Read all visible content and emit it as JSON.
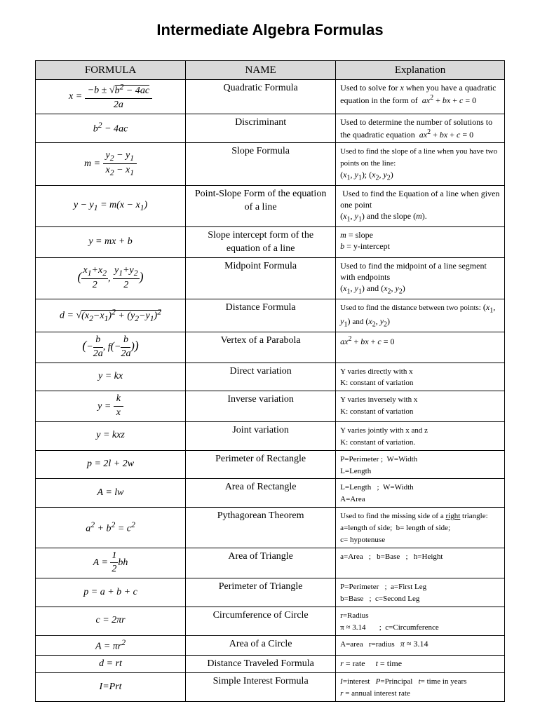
{
  "title": "Intermediate Algebra Formulas",
  "headers": {
    "formula": "FORMULA",
    "name": "NAME",
    "exp": "Explanation"
  },
  "rows": [
    {
      "formula": "<span class='nowrap'>x = <span style='display:inline-block;vertical-align:middle;text-align:center;'><span style='display:block;border-bottom:1px solid #000;padding:0 4px;'>−<i>b</i> ± √<span style='border-top:1px solid #000;'><i>b</i><sup>2</sup> − 4<i>ac</i></span></span><span style='display:block;'>2<i>a</i></span></span></span>",
      "name": "Quadratic Formula",
      "exp": "Used to solve for <i>x</i> when you have a quadratic equation in the form of &nbsp;<i>ax</i><sup>2</sup> + <i>bx</i> + <i>c</i> = 0"
    },
    {
      "formula": "<i>b</i><sup>2</sup> − 4<i>ac</i>",
      "name": "Discriminant",
      "exp": "Used to determine the number of solutions to the quadratic equation &nbsp;<i>ax</i><sup>2</sup> + <i>bx</i> + <i>c</i> = 0"
    },
    {
      "formula": "<span class='nowrap'><i>m</i> = <span style='display:inline-block;vertical-align:middle;text-align:center;'><span style='display:block;border-bottom:1px solid #000;padding:0 4px;'><i>y</i><sub>2</sub> − <i>y</i><sub>1</sub></span><span style='display:block;'><i>x</i><sub>2</sub> − <i>x</i><sub>1</sub></span></span></span>",
      "name": "Slope Formula",
      "exp": "<span class='small'>Used to find the slope of a line when you have two points on the line:</span><br>(<i>x</i><sub>1</sub>, <i>y</i><sub>1</sub>); (<i>x</i><sub>2</sub>, <i>y</i><sub>2</sub>)"
    },
    {
      "formula": "<i>y</i> − <i>y</i><sub>1</sub> = <i>m</i>(<i>x</i> − <i>x</i><sub>1</sub>)",
      "name": "Point-Slope Form of the equation of a line",
      "exp": "&nbsp;Used to find the Equation of a line when given one point<br>(<i>x</i><sub>1</sub>, <i>y</i><sub>1</sub>) and the slope (<i>m</i>)."
    },
    {
      "formula": "<i>y</i> = <i>mx</i> + <i>b</i>",
      "name": "Slope intercept form of the equation of a line",
      "exp": "<i>m</i> = slope<br><i>b</i> = y-intercept"
    },
    {
      "formula": "<span style='font-size:18px;'>(</span><span style='display:inline-block;vertical-align:middle;text-align:center;'><span style='display:block;border-bottom:1px solid #000;padding:0 2px;'><i>x</i><sub>1</sub>+<i>x</i><sub>2</sub></span><span>2</span></span>, <span style='display:inline-block;vertical-align:middle;text-align:center;'><span style='display:block;border-bottom:1px solid #000;padding:0 2px;'><i>y</i><sub>1</sub>+<i>y</i><sub>2</sub></span><span>2</span></span><span style='font-size:18px;'>)</span>",
      "name": "Midpoint Formula",
      "exp": "Used to find the midpoint of a line segment with endpoints<br>(<i>x</i><sub>1</sub>, <i>y</i><sub>1</sub>) and (<i>x</i><sub>2</sub>, <i>y</i><sub>2</sub>)"
    },
    {
      "formula": "<i>d</i> = √<span style='border-top:1px solid #000;'>(<i>x</i><sub>2</sub>−<i>x</i><sub>1</sub>)<sup>2</sup> + (<i>y</i><sub>2</sub>−<i>y</i><sub>1</sub>)<sup>2</sup></span>",
      "name": "Distance Formula",
      "exp": "<span class='small'>Used to find the distance between two points:</span> (<i>x</i><sub>1</sub>, <i>y</i><sub>1</sub>) <span class='small'>and</span> (<i>x</i><sub>2</sub>, <i>y</i><sub>2</sub>)"
    },
    {
      "formula": "<span style='font-size:18px;'>(</span>−<span style='display:inline-block;vertical-align:middle;text-align:center;'><span style='display:block;border-bottom:1px solid #000;padding:0 2px;'><i>b</i></span><span>2<i>a</i></span></span>, <i>f</i><span style='font-size:16px;'>(</span>−<span style='display:inline-block;vertical-align:middle;text-align:center;'><span style='display:block;border-bottom:1px solid #000;padding:0 2px;'><i>b</i></span><span>2<i>a</i></span></span><span style='font-size:16px;'>)</span><span style='font-size:18px;'>)</span>",
      "name": "Vertex of a Parabola",
      "exp": "<i>ax</i><sup>2</sup> + <i>bx</i> + <i>c</i> = 0"
    },
    {
      "formula": "<i>y</i> = <i>kx</i>",
      "name": "Direct variation",
      "exp": "<span class='small'>Y varies directly with x<br>K: constant of variation</span>"
    },
    {
      "formula": "<span class='nowrap'><i>y</i> = <span style='display:inline-block;vertical-align:middle;text-align:center;'><span style='display:block;border-bottom:1px solid #000;padding:0 4px;'><i>k</i></span><span><i>x</i></span></span></span>",
      "name": "Inverse variation",
      "exp": "<span class='small'>Y varies inversely with x<br>K: constant of variation</span>"
    },
    {
      "formula": "<i>y</i> = <i>kxz</i>",
      "name": "Joint variation",
      "exp": "<span class='small'>Y varies jointly with x and z<br>K: constant of variation.</span>"
    },
    {
      "formula": "<i>p</i> = 2<i>l</i> + 2<i>w</i>",
      "name": "Perimeter of Rectangle",
      "exp": "<span class='small'>P=Perimeter ;&nbsp;&nbsp;W=Width<br>L=Length</span>"
    },
    {
      "formula": "<i>A</i> = <i>lw</i>",
      "name": "Area of Rectangle",
      "exp": "<span class='small'>L=Length&nbsp;&nbsp;&nbsp;;&nbsp;&nbsp;W=Width<br>A=Area</span>"
    },
    {
      "formula": "<i>a</i><sup>2</sup> + <i>b</i><sup>2</sup> = <i>c</i><sup>2</sup>",
      "name": "Pythagorean Theorem",
      "exp": "<span class='small'>Used to find the missing side of a <span class='u'>right</span> triangle:<br>a=length of side;&nbsp;&nbsp;b= length of side;<br>c= hypotenuse</span>"
    },
    {
      "formula": "<span class='nowrap'><i>A</i> = <span style='display:inline-block;vertical-align:middle;text-align:center;'><span style='display:block;border-bottom:1px solid #000;padding:0 2px;'>1</span><span>2</span></span><i>bh</i></span>",
      "name": "Area of Triangle",
      "exp": "<span class='small'>a=Area&nbsp;&nbsp;&nbsp;;&nbsp;&nbsp;&nbsp;b=Base&nbsp;&nbsp;&nbsp;;&nbsp;&nbsp;&nbsp;h=Height</span>"
    },
    {
      "formula": "<i>p</i> = <i>a</i> + <i>b</i> + <i>c</i>",
      "name": "Perimeter of Triangle",
      "exp": "<span class='small'>P=Perimeter&nbsp;&nbsp;&nbsp;;&nbsp;&nbsp;a=First Leg<br>b=Base&nbsp;&nbsp;&nbsp;;&nbsp;&nbsp;c=Second Leg</span>"
    },
    {
      "formula": "<i>c</i> = 2π<i>r</i>",
      "name": "Circumference of Circle",
      "exp": "<span class='small'>r=Radius<br>π ≈ 3.14&nbsp;&nbsp;&nbsp;&nbsp;&nbsp;&nbsp;&nbsp;;&nbsp;&nbsp;c=Circumference</span>"
    },
    {
      "formula": "<i>A</i> = π<i>r</i><sup>2</sup>",
      "name": "Area of a Circle",
      "exp": "<span class='small'>A=area&nbsp;&nbsp;&nbsp;r=radius&nbsp;&nbsp;&nbsp;</span><i>π</i> ≈ 3.14"
    },
    {
      "formula": "<i>d</i> = <i>rt</i>",
      "name": "Distance Traveled Formula",
      "exp": "<i>r</i> = rate&nbsp;&nbsp;&nbsp;&nbsp;&nbsp;<i>t</i> = time"
    },
    {
      "formula": "<i>I=Prt</i>",
      "name": "Simple Interest Formula",
      "exp": "<span class='small'><i>I</i>=interest&nbsp;&nbsp;&nbsp;<i>P</i>=Principal&nbsp;&nbsp;&nbsp;<i>t</i>= time in years<br><i>r</i> = annual interest rate</span>"
    }
  ]
}
